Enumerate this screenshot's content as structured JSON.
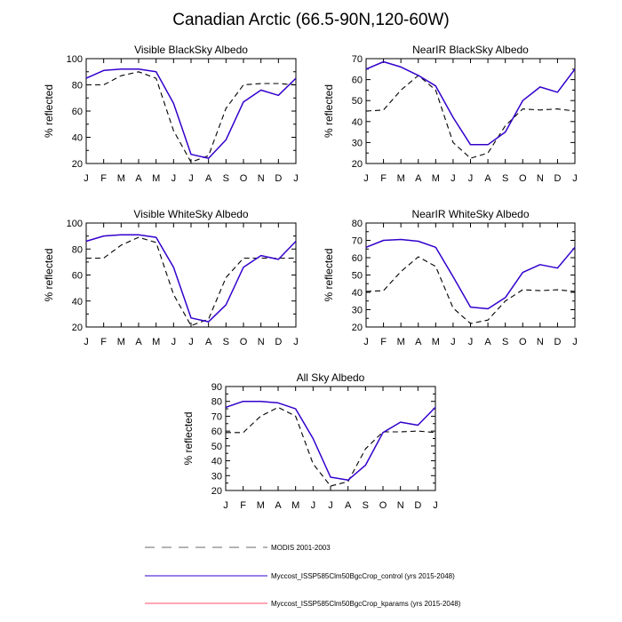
{
  "title": "Canadian Arctic (66.5-90N,120-60W)",
  "chart_data": [
    {
      "type": "line",
      "title": "Visible BlackSky Albedo",
      "xlabel": "",
      "ylabel": "% reflected",
      "categories": [
        "J",
        "F",
        "M",
        "A",
        "M",
        "J",
        "J",
        "A",
        "S",
        "O",
        "N",
        "D",
        "J"
      ],
      "ylim": [
        20,
        100
      ],
      "yticks": [
        20,
        40,
        60,
        80,
        100
      ],
      "series": [
        {
          "name": "MODIS 2001-2003",
          "values": [
            80,
            80,
            87,
            90,
            85,
            45,
            21,
            26,
            62,
            80,
            81,
            81,
            80
          ]
        },
        {
          "name": "Myccost_ISSP585Clm50BgcCrop_control (yrs 2015-2048)",
          "values": [
            85,
            91,
            92,
            92,
            90,
            66,
            27,
            24,
            38,
            67,
            76,
            72,
            85
          ]
        }
      ]
    },
    {
      "type": "line",
      "title": "NearIR BlackSky Albedo",
      "xlabel": "",
      "ylabel": "% reflected",
      "categories": [
        "J",
        "F",
        "M",
        "A",
        "M",
        "J",
        "J",
        "A",
        "S",
        "O",
        "N",
        "D",
        "J"
      ],
      "ylim": [
        20,
        70
      ],
      "yticks": [
        20,
        30,
        40,
        50,
        60,
        70
      ],
      "series": [
        {
          "name": "MODIS 2001-2003",
          "values": [
            45,
            45.5,
            55,
            62,
            55,
            30,
            22.5,
            25,
            38,
            46,
            45.5,
            46,
            45
          ]
        },
        {
          "name": "Myccost_ISSP585Clm50BgcCrop_control (yrs 2015-2048)",
          "values": [
            65,
            68.5,
            66,
            62,
            57,
            42,
            29,
            29,
            35,
            50,
            56.5,
            54,
            65
          ]
        }
      ]
    },
    {
      "type": "line",
      "title": "Visible WhiteSky Albedo",
      "xlabel": "",
      "ylabel": "% reflected",
      "categories": [
        "J",
        "F",
        "M",
        "A",
        "M",
        "J",
        "J",
        "A",
        "S",
        "O",
        "N",
        "D",
        "J"
      ],
      "ylim": [
        20,
        100
      ],
      "yticks": [
        20,
        40,
        60,
        80,
        100
      ],
      "series": [
        {
          "name": "MODIS 2001-2003",
          "values": [
            73,
            73,
            83,
            89,
            85,
            45,
            21,
            26,
            58,
            73,
            73,
            73,
            73
          ]
        },
        {
          "name": "Myccost_ISSP585Clm50BgcCrop_control (yrs 2015-2048)",
          "values": [
            86,
            90,
            91,
            91,
            89,
            66,
            27,
            24,
            37,
            66,
            75,
            72,
            86
          ]
        }
      ]
    },
    {
      "type": "line",
      "title": "NearIR WhiteSky Albedo",
      "xlabel": "",
      "ylabel": "% reflected",
      "categories": [
        "J",
        "F",
        "M",
        "A",
        "M",
        "J",
        "J",
        "A",
        "S",
        "O",
        "N",
        "D",
        "J"
      ],
      "ylim": [
        20,
        80
      ],
      "yticks": [
        20,
        30,
        40,
        50,
        60,
        70,
        80
      ],
      "series": [
        {
          "name": "MODIS 2001-2003",
          "values": [
            40.5,
            41,
            52,
            60.5,
            55,
            31,
            22,
            24,
            35,
            41.5,
            41,
            41.5,
            40.5
          ]
        },
        {
          "name": "Myccost_ISSP585Clm50BgcCrop_control (yrs 2015-2048)",
          "values": [
            66,
            70,
            70.5,
            69.5,
            66,
            49,
            31.5,
            30.5,
            37,
            51.5,
            56,
            54,
            66
          ]
        }
      ]
    },
    {
      "type": "line",
      "title": "All Sky Albedo",
      "xlabel": "",
      "ylabel": "% reflected",
      "categories": [
        "J",
        "F",
        "M",
        "A",
        "M",
        "J",
        "J",
        "A",
        "S",
        "O",
        "N",
        "D",
        "J"
      ],
      "ylim": [
        20,
        90
      ],
      "yticks": [
        20,
        30,
        40,
        50,
        60,
        70,
        80,
        90
      ],
      "series": [
        {
          "name": "MODIS 2001-2003",
          "values": [
            59,
            59,
            70,
            76,
            70,
            38,
            23,
            26,
            48,
            59.5,
            59.5,
            60,
            59
          ]
        },
        {
          "name": "Myccost_ISSP585Clm50BgcCrop_control (yrs 2015-2048)",
          "values": [
            76,
            80,
            80,
            79,
            75,
            55,
            29,
            27,
            37,
            59,
            66,
            64,
            76
          ]
        }
      ]
    }
  ],
  "legend": [
    {
      "label": "MODIS 2001-2003",
      "color": "#000000",
      "style": "dashed"
    },
    {
      "label": "Myccost_ISSP585Clm50BgcCrop_control (yrs 2015-2048)",
      "color": "#3300cc",
      "style": "solid"
    },
    {
      "label": "Myccost_ISSP585Clm50BgcCrop_kparams (yrs 2015-2048)",
      "color": "#ff4d6d",
      "style": "solid"
    }
  ],
  "colors": {
    "modis": "#000000",
    "control": "#3300cc",
    "kparams": "#ff4d6d"
  }
}
